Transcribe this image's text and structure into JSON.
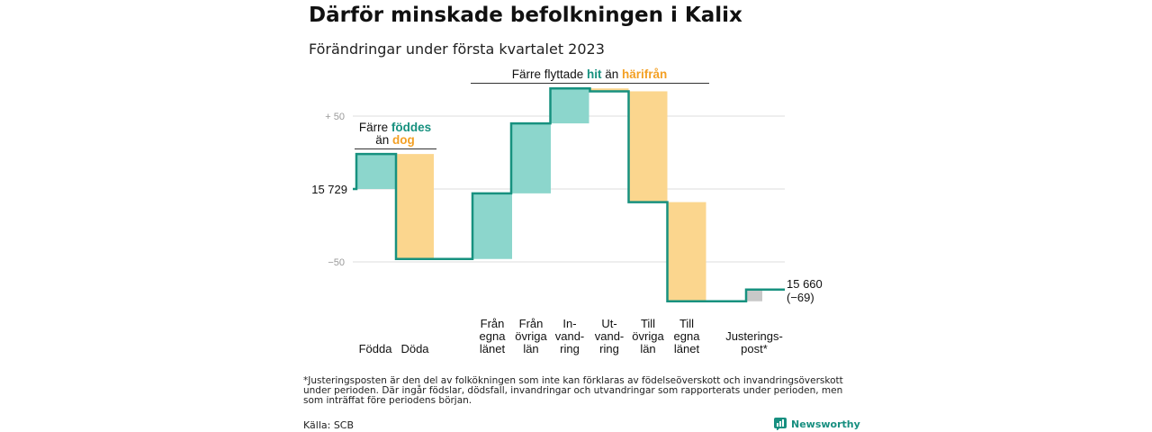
{
  "title": "Därför minskade befolkningen i Kalix",
  "subtitle": "Förändringar under första kvartalet 2023",
  "colors": {
    "increase": "#8cd6cc",
    "decrease": "#fbd68e",
    "adjustment": "#c8c8c8",
    "line": "#17917f",
    "teal_text": "#17917f",
    "orange_text": "#f3a024",
    "grid": "#dddddd"
  },
  "chart_data": {
    "type": "waterfall",
    "start_value": 15729,
    "end_value": 15660,
    "start_label": "15 729",
    "end_label_value": "15 660",
    "end_label_change": "(−69)",
    "y_ticks": [
      {
        "value": 50,
        "label": "+ 50"
      },
      {
        "value": 0,
        "label": ""
      },
      {
        "value": -50,
        "label": "−50"
      }
    ],
    "steps": [
      {
        "label": [
          "Födda"
        ],
        "change": 24,
        "kind": "increase"
      },
      {
        "label": [
          "Döda"
        ],
        "change": -72,
        "kind": "decrease"
      },
      {
        "label": [
          "Från",
          "egna",
          "länet"
        ],
        "change": 45,
        "kind": "increase"
      },
      {
        "label": [
          "Från",
          "övriga",
          "län"
        ],
        "change": 48,
        "kind": "increase"
      },
      {
        "label": [
          "In-",
          "vand-",
          "ring"
        ],
        "change": 24,
        "kind": "increase"
      },
      {
        "label": [
          "Ut-",
          "vand-",
          "ring"
        ],
        "change": -2,
        "kind": "decrease"
      },
      {
        "label": [
          "Till",
          "övriga",
          "län"
        ],
        "change": -76,
        "kind": "decrease"
      },
      {
        "label": [
          "Till",
          "egna",
          "länet"
        ],
        "change": -68,
        "kind": "decrease"
      },
      {
        "label": [
          "Justerings-",
          "post*"
        ],
        "change": 8,
        "kind": "adjustment"
      }
    ],
    "annotations": {
      "births": {
        "prefix": "Färre ",
        "highlight1": "föddes",
        "middle": "än ",
        "highlight2": "dog"
      },
      "migration": {
        "prefix": "Färre flyttade ",
        "highlight1": "hit",
        "middle": " än ",
        "highlight2": "härifrån"
      }
    }
  },
  "footnote": "*Justeringsposten är den del av folkökningen som inte kan förklaras av födelseöverskott och invandringsöverskott under perioden. Där ingår födslar, dödsfall, invandringar och utvandringar som rapporterats under perioden, men som inträffat före periodens början.",
  "source": "Källa: SCB",
  "brand": {
    "name": "Newsworthy",
    "icon": "newsworthy-logo-icon"
  }
}
